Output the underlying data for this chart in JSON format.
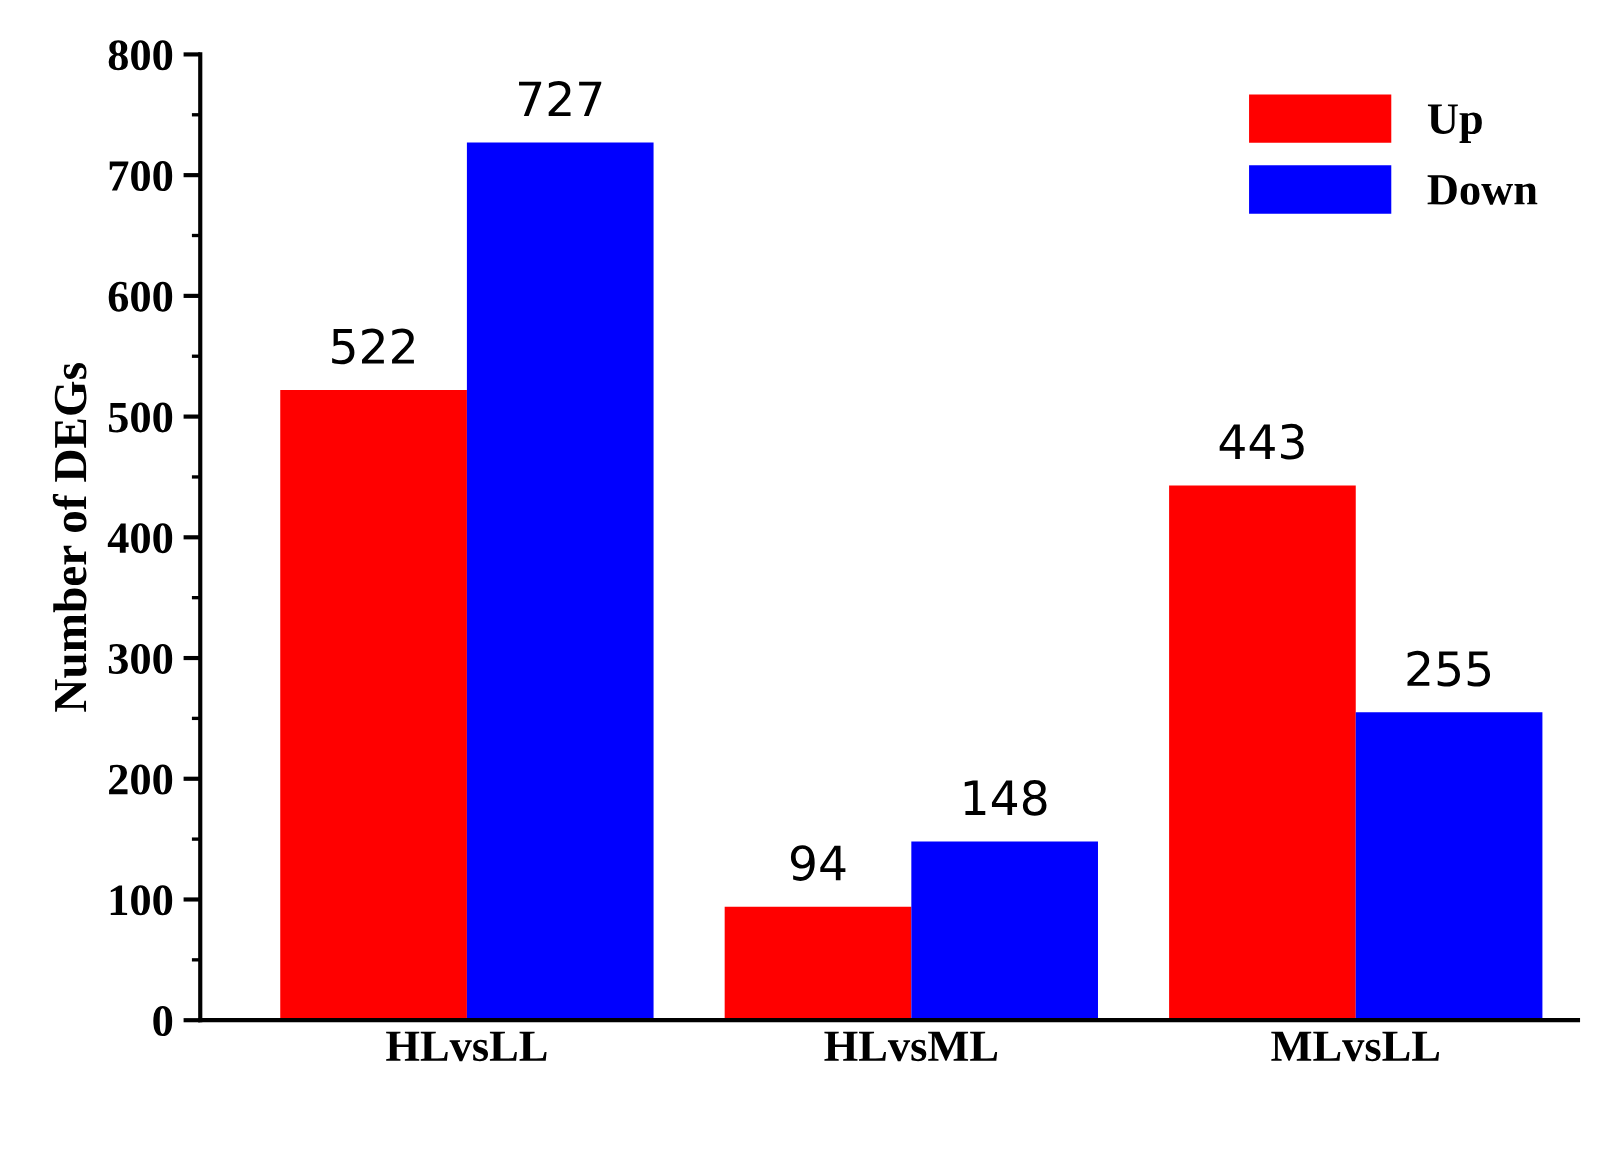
{
  "chart_data": {
    "type": "bar",
    "ylabel": "Number of DEGs",
    "categories": [
      "HLvsLL",
      "HLvsML",
      "MLvsLL"
    ],
    "series": [
      {
        "name": "Up",
        "color": "#ff0000",
        "values": [
          522,
          94,
          443
        ]
      },
      {
        "name": "Down",
        "color": "#0000ff",
        "values": [
          727,
          148,
          255
        ]
      }
    ],
    "ylim": [
      0,
      800
    ],
    "yticks": [
      0,
      100,
      200,
      300,
      400,
      500,
      600,
      700,
      800
    ],
    "data_labels": true,
    "legend": "top right",
    "grid": false
  }
}
